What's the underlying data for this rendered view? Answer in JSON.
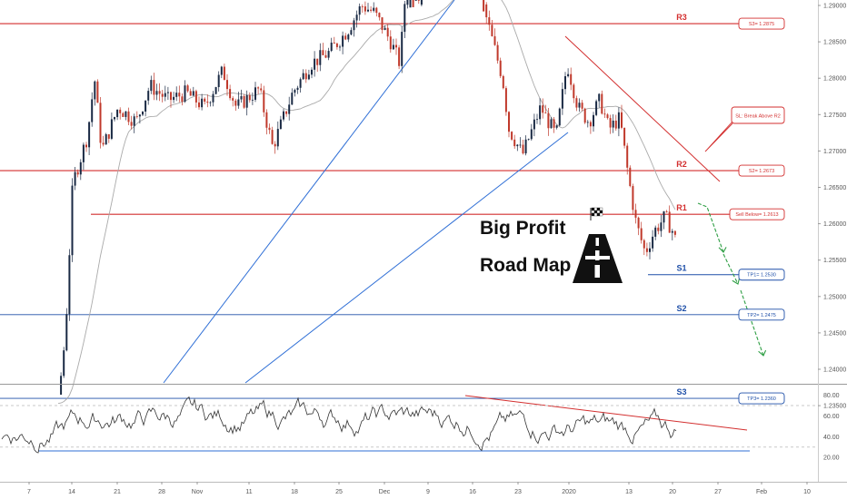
{
  "chart_data": [
    {
      "type": "candlestick",
      "title": "Big Profit",
      "subtitle": "Road Map",
      "price_axis": {
        "ticks": [
          "1.29000",
          "1.28500",
          "1.28000",
          "1.27500",
          "1.27000",
          "1.26500",
          "1.26000",
          "1.25500",
          "1.25000",
          "1.24500",
          "1.24000",
          "1.23500"
        ],
        "values": [
          1.29,
          1.285,
          1.28,
          1.275,
          1.27,
          1.265,
          1.26,
          1.255,
          1.25,
          1.245,
          1.24,
          1.235
        ]
      },
      "time_axis": {
        "labels": [
          "7",
          "14",
          "21",
          "28",
          "Nov",
          "11",
          "18",
          "25",
          "Dec",
          "9",
          "16",
          "23",
          "2020",
          "13",
          "20",
          "27",
          "Feb",
          "10"
        ]
      },
      "levels": [
        {
          "label": "R3",
          "box": "S3= 1.2875",
          "price": 1.2875,
          "color": "#d32f2f"
        },
        {
          "label": "R2",
          "box": "S2= 1.2673",
          "price": 1.2673,
          "color": "#d32f2f"
        },
        {
          "label": "R1",
          "box": "Sell Below= 1.2613",
          "price": 1.2613,
          "color": "#d32f2f"
        },
        {
          "label": "S1",
          "box": "TP1= 1.2530",
          "price": 1.253,
          "color": "#1e4fa8"
        },
        {
          "label": "S2",
          "box": "TP2= 1.2475",
          "box_price": 1.2475,
          "price": 1.2475,
          "color": "#1e4fa8"
        },
        {
          "label": "S3",
          "box": "TP3= 1.2360",
          "price": 1.236,
          "color": "#1e4fa8"
        }
      ],
      "annotations": [
        {
          "text": "SL: Break Above R2",
          "color": "#d32f2f"
        }
      ],
      "colors": {
        "up": "#1a2a44",
        "down": "#c0392b",
        "support": "#2f6fd6",
        "resistance": "#d32f2f",
        "projection": "#2e9e44",
        "moving_average": "#aaaaaa"
      }
    },
    {
      "type": "line",
      "name": "oscillator",
      "y_axis": {
        "ticks": [
          "80.00",
          "60.00",
          "40.00",
          "20.00"
        ],
        "values": [
          80,
          60,
          40,
          20
        ]
      },
      "ylim": [
        10,
        90
      ],
      "reference_lines": [
        70,
        30
      ]
    }
  ]
}
